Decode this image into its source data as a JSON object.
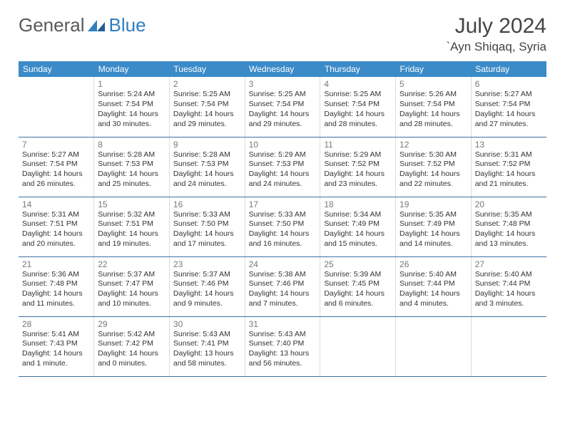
{
  "logo": {
    "text1": "General",
    "text2": "Blue",
    "color1": "#5a5a5a",
    "color2": "#2f7fbf"
  },
  "title": "July 2024",
  "location": "`Ayn Shiqaq, Syria",
  "colors": {
    "header_bg": "#3b8bc9",
    "header_fg": "#ffffff",
    "row_border": "#3b6fa0",
    "daynum": "#787878",
    "text": "#333333"
  },
  "daysOfWeek": [
    "Sunday",
    "Monday",
    "Tuesday",
    "Wednesday",
    "Thursday",
    "Friday",
    "Saturday"
  ],
  "startOffset": 1,
  "days": [
    {
      "n": 1,
      "sr": "5:24 AM",
      "ss": "7:54 PM",
      "dl": "14 hours and 30 minutes."
    },
    {
      "n": 2,
      "sr": "5:25 AM",
      "ss": "7:54 PM",
      "dl": "14 hours and 29 minutes."
    },
    {
      "n": 3,
      "sr": "5:25 AM",
      "ss": "7:54 PM",
      "dl": "14 hours and 29 minutes."
    },
    {
      "n": 4,
      "sr": "5:25 AM",
      "ss": "7:54 PM",
      "dl": "14 hours and 28 minutes."
    },
    {
      "n": 5,
      "sr": "5:26 AM",
      "ss": "7:54 PM",
      "dl": "14 hours and 28 minutes."
    },
    {
      "n": 6,
      "sr": "5:27 AM",
      "ss": "7:54 PM",
      "dl": "14 hours and 27 minutes."
    },
    {
      "n": 7,
      "sr": "5:27 AM",
      "ss": "7:54 PM",
      "dl": "14 hours and 26 minutes."
    },
    {
      "n": 8,
      "sr": "5:28 AM",
      "ss": "7:53 PM",
      "dl": "14 hours and 25 minutes."
    },
    {
      "n": 9,
      "sr": "5:28 AM",
      "ss": "7:53 PM",
      "dl": "14 hours and 24 minutes."
    },
    {
      "n": 10,
      "sr": "5:29 AM",
      "ss": "7:53 PM",
      "dl": "14 hours and 24 minutes."
    },
    {
      "n": 11,
      "sr": "5:29 AM",
      "ss": "7:52 PM",
      "dl": "14 hours and 23 minutes."
    },
    {
      "n": 12,
      "sr": "5:30 AM",
      "ss": "7:52 PM",
      "dl": "14 hours and 22 minutes."
    },
    {
      "n": 13,
      "sr": "5:31 AM",
      "ss": "7:52 PM",
      "dl": "14 hours and 21 minutes."
    },
    {
      "n": 14,
      "sr": "5:31 AM",
      "ss": "7:51 PM",
      "dl": "14 hours and 20 minutes."
    },
    {
      "n": 15,
      "sr": "5:32 AM",
      "ss": "7:51 PM",
      "dl": "14 hours and 19 minutes."
    },
    {
      "n": 16,
      "sr": "5:33 AM",
      "ss": "7:50 PM",
      "dl": "14 hours and 17 minutes."
    },
    {
      "n": 17,
      "sr": "5:33 AM",
      "ss": "7:50 PM",
      "dl": "14 hours and 16 minutes."
    },
    {
      "n": 18,
      "sr": "5:34 AM",
      "ss": "7:49 PM",
      "dl": "14 hours and 15 minutes."
    },
    {
      "n": 19,
      "sr": "5:35 AM",
      "ss": "7:49 PM",
      "dl": "14 hours and 14 minutes."
    },
    {
      "n": 20,
      "sr": "5:35 AM",
      "ss": "7:48 PM",
      "dl": "14 hours and 13 minutes."
    },
    {
      "n": 21,
      "sr": "5:36 AM",
      "ss": "7:48 PM",
      "dl": "14 hours and 11 minutes."
    },
    {
      "n": 22,
      "sr": "5:37 AM",
      "ss": "7:47 PM",
      "dl": "14 hours and 10 minutes."
    },
    {
      "n": 23,
      "sr": "5:37 AM",
      "ss": "7:46 PM",
      "dl": "14 hours and 9 minutes."
    },
    {
      "n": 24,
      "sr": "5:38 AM",
      "ss": "7:46 PM",
      "dl": "14 hours and 7 minutes."
    },
    {
      "n": 25,
      "sr": "5:39 AM",
      "ss": "7:45 PM",
      "dl": "14 hours and 6 minutes."
    },
    {
      "n": 26,
      "sr": "5:40 AM",
      "ss": "7:44 PM",
      "dl": "14 hours and 4 minutes."
    },
    {
      "n": 27,
      "sr": "5:40 AM",
      "ss": "7:44 PM",
      "dl": "14 hours and 3 minutes."
    },
    {
      "n": 28,
      "sr": "5:41 AM",
      "ss": "7:43 PM",
      "dl": "14 hours and 1 minute."
    },
    {
      "n": 29,
      "sr": "5:42 AM",
      "ss": "7:42 PM",
      "dl": "14 hours and 0 minutes."
    },
    {
      "n": 30,
      "sr": "5:43 AM",
      "ss": "7:41 PM",
      "dl": "13 hours and 58 minutes."
    },
    {
      "n": 31,
      "sr": "5:43 AM",
      "ss": "7:40 PM",
      "dl": "13 hours and 56 minutes."
    }
  ],
  "labels": {
    "sunrise": "Sunrise:",
    "sunset": "Sunset:",
    "daylight": "Daylight:"
  }
}
